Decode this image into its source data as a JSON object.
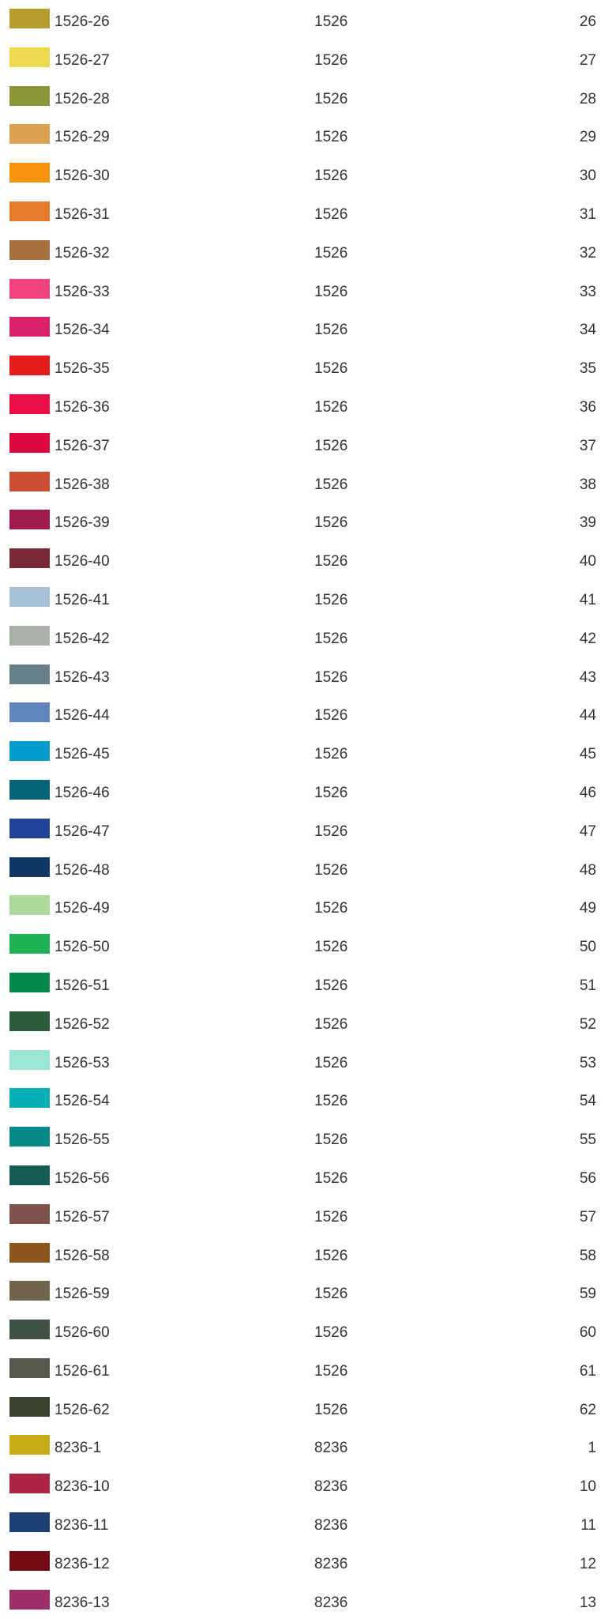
{
  "rows": [
    {
      "code": "1526-26",
      "group": "1526",
      "number": "26",
      "color": "#b79d2d"
    },
    {
      "code": "1526-27",
      "group": "1526",
      "number": "27",
      "color": "#ecd94e"
    },
    {
      "code": "1526-28",
      "group": "1526",
      "number": "28",
      "color": "#8c9638"
    },
    {
      "code": "1526-29",
      "group": "1526",
      "number": "29",
      "color": "#dda154"
    },
    {
      "code": "1526-30",
      "group": "1526",
      "number": "30",
      "color": "#f8930f"
    },
    {
      "code": "1526-31",
      "group": "1526",
      "number": "31",
      "color": "#e47a2a"
    },
    {
      "code": "1526-32",
      "group": "1526",
      "number": "32",
      "color": "#a7703f"
    },
    {
      "code": "1526-33",
      "group": "1526",
      "number": "33",
      "color": "#f2427f"
    },
    {
      "code": "1526-34",
      "group": "1526",
      "number": "34",
      "color": "#db206c"
    },
    {
      "code": "1526-35",
      "group": "1526",
      "number": "35",
      "color": "#e41b1d"
    },
    {
      "code": "1526-36",
      "group": "1526",
      "number": "36",
      "color": "#ec0d47"
    },
    {
      "code": "1526-37",
      "group": "1526",
      "number": "37",
      "color": "#dc083e"
    },
    {
      "code": "1526-38",
      "group": "1526",
      "number": "38",
      "color": "#cc4f33"
    },
    {
      "code": "1526-39",
      "group": "1526",
      "number": "39",
      "color": "#9f1b4d"
    },
    {
      "code": "1526-40",
      "group": "1526",
      "number": "40",
      "color": "#772936"
    },
    {
      "code": "1526-41",
      "group": "1526",
      "number": "41",
      "color": "#a7c2d7"
    },
    {
      "code": "1526-42",
      "group": "1526",
      "number": "42",
      "color": "#a8b0a8"
    },
    {
      "code": "1526-43",
      "group": "1526",
      "number": "43",
      "color": "#6a8089"
    },
    {
      "code": "1526-44",
      "group": "1526",
      "number": "44",
      "color": "#6085bf"
    },
    {
      "code": "1526-45",
      "group": "1526",
      "number": "45",
      "color": "#019ccc"
    },
    {
      "code": "1526-46",
      "group": "1526",
      "number": "46",
      "color": "#086479"
    },
    {
      "code": "1526-47",
      "group": "1526",
      "number": "47",
      "color": "#214296"
    },
    {
      "code": "1526-48",
      "group": "1526",
      "number": "48",
      "color": "#0e3764"
    },
    {
      "code": "1526-49",
      "group": "1526",
      "number": "49",
      "color": "#afda9d"
    },
    {
      "code": "1526-50",
      "group": "1526",
      "number": "50",
      "color": "#1fb154"
    },
    {
      "code": "1526-51",
      "group": "1526",
      "number": "51",
      "color": "#04884a"
    },
    {
      "code": "1526-52",
      "group": "1526",
      "number": "52",
      "color": "#2c5b3b"
    },
    {
      "code": "1526-53",
      "group": "1526",
      "number": "53",
      "color": "#99e6d7"
    },
    {
      "code": "1526-54",
      "group": "1526",
      "number": "54",
      "color": "#08aeb6"
    },
    {
      "code": "1526-55",
      "group": "1526",
      "number": "55",
      "color": "#068888"
    },
    {
      "code": "1526-56",
      "group": "1526",
      "number": "56",
      "color": "#145c54"
    },
    {
      "code": "1526-57",
      "group": "1526",
      "number": "57",
      "color": "#7f524c"
    },
    {
      "code": "1526-58",
      "group": "1526",
      "number": "58",
      "color": "#8b561d"
    },
    {
      "code": "1526-59",
      "group": "1526",
      "number": "59",
      "color": "#70644b"
    },
    {
      "code": "1526-60",
      "group": "1526",
      "number": "60",
      "color": "#3f5141"
    },
    {
      "code": "1526-61",
      "group": "1526",
      "number": "61",
      "color": "#54594c"
    },
    {
      "code": "1526-62",
      "group": "1526",
      "number": "62",
      "color": "#3b4230"
    },
    {
      "code": "8236-1",
      "group": "8236",
      "number": "1",
      "color": "#c8ac17"
    },
    {
      "code": "8236-10",
      "group": "8236",
      "number": "10",
      "color": "#ab2444"
    },
    {
      "code": "8236-11",
      "group": "8236",
      "number": "11",
      "color": "#1d3f74"
    },
    {
      "code": "8236-12",
      "group": "8236",
      "number": "12",
      "color": "#730c14"
    },
    {
      "code": "8236-13",
      "group": "8236",
      "number": "13",
      "color": "#9b2e66"
    }
  ]
}
